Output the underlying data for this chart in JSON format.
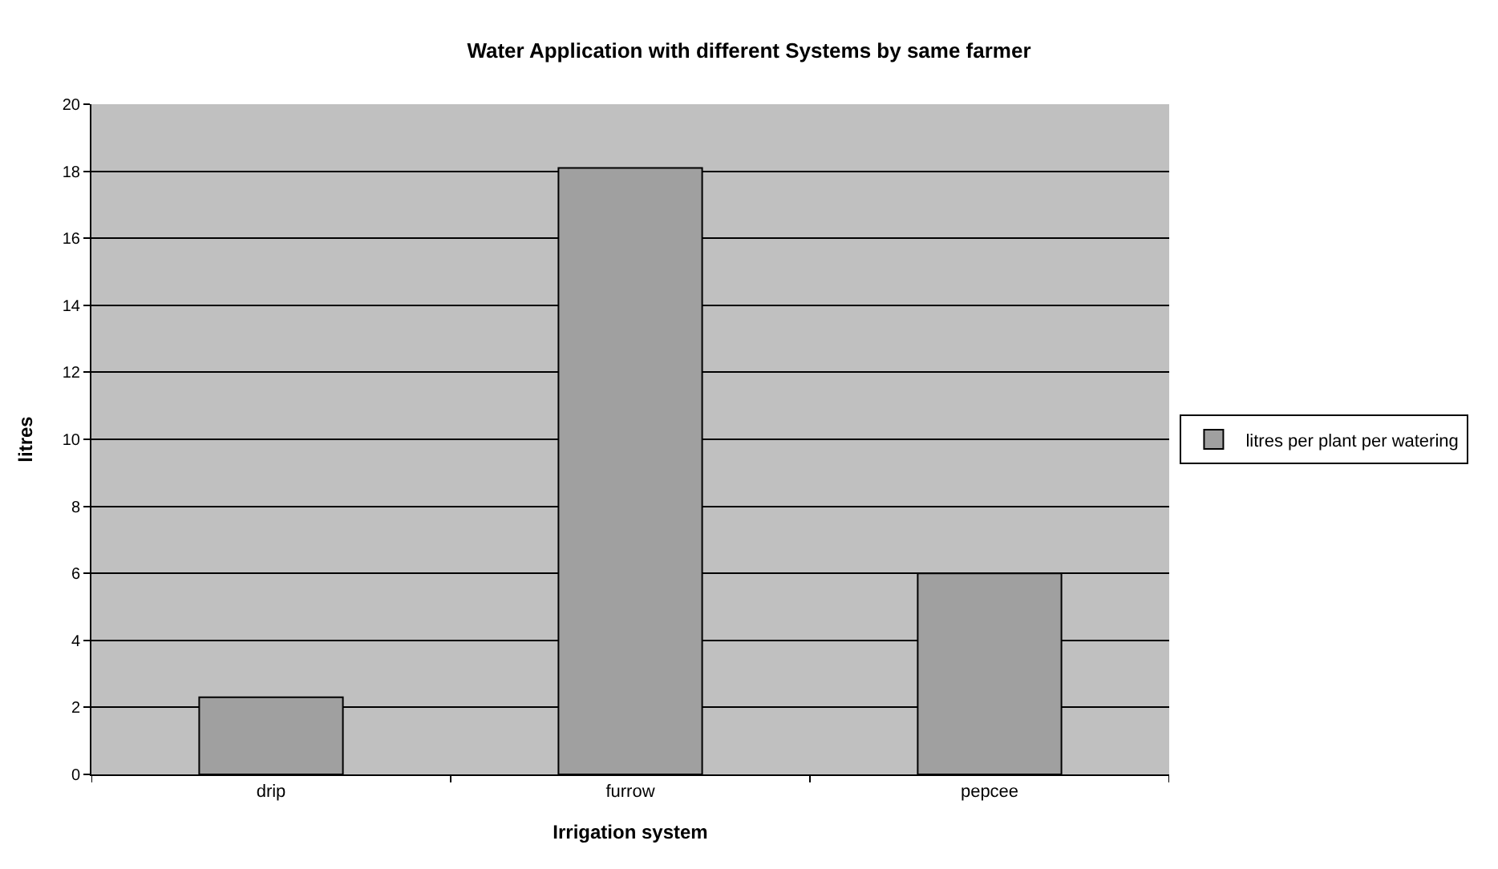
{
  "chart_data": {
    "type": "bar",
    "title": "Water Application with different Systems by same farmer",
    "xlabel": "Irrigation system",
    "ylabel": "litres",
    "categories": [
      "drip",
      "furrow",
      "pepcee"
    ],
    "series": [
      {
        "name": "litres per plant per watering",
        "color": "#a0a0a0",
        "values": [
          2.3,
          18.1,
          6.0
        ]
      }
    ],
    "ylim": [
      0,
      20
    ],
    "yticks": [
      0,
      2,
      4,
      6,
      8,
      10,
      12,
      14,
      16,
      18,
      20
    ],
    "grid": "y",
    "legend": "right"
  }
}
